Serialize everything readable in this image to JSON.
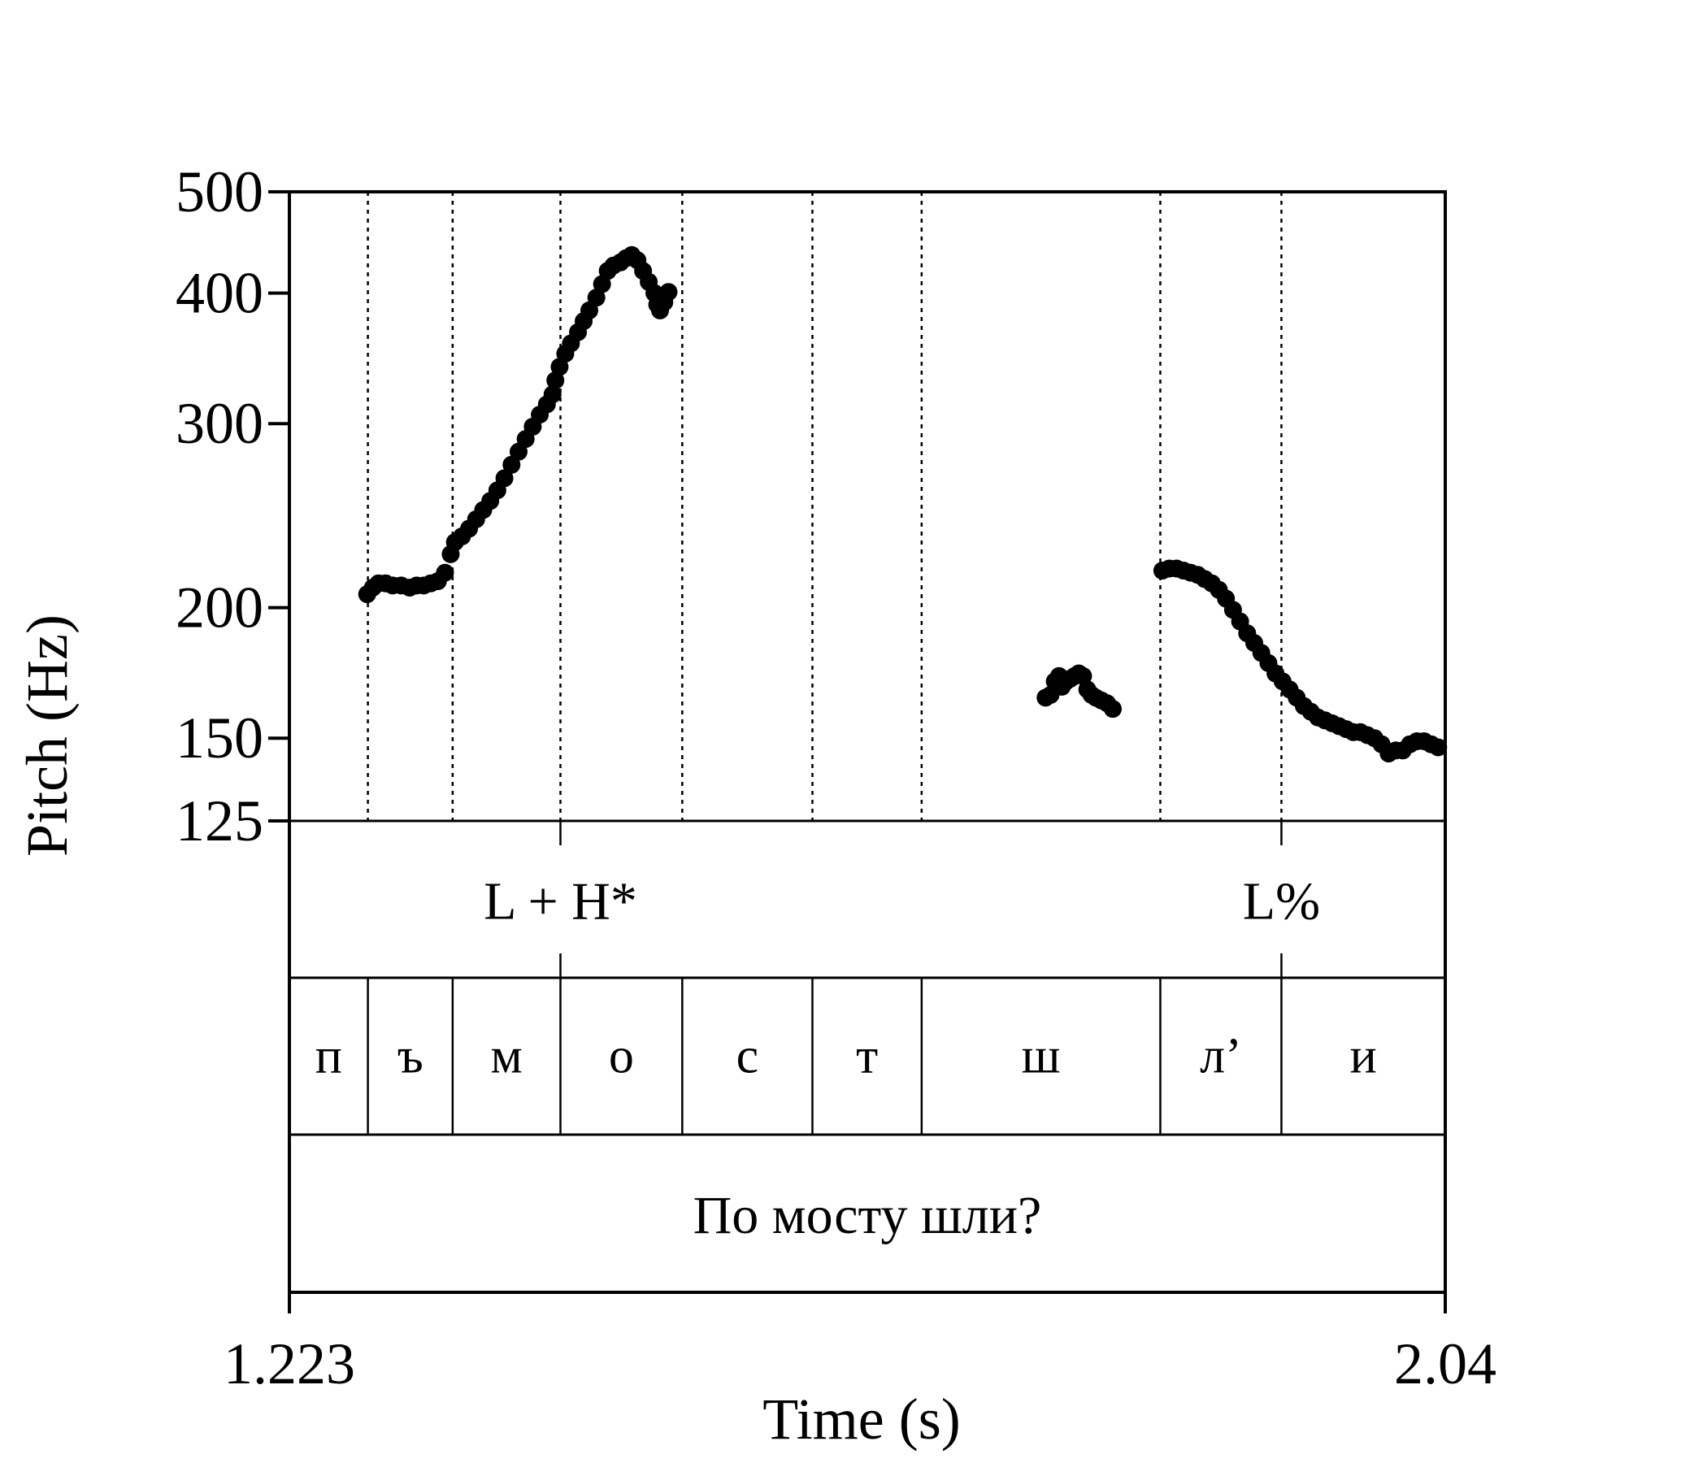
{
  "chart_data": {
    "type": "scatter",
    "title": "",
    "xlabel": "Time (s)",
    "ylabel": "Pitch (Hz)",
    "xlim": [
      1.223,
      2.04
    ],
    "ylim": [
      125,
      500
    ],
    "yscale": "log",
    "x_tick_labels": [
      "1.223",
      "2.04"
    ],
    "y_ticks": [
      {
        "value": 125,
        "label": "125"
      },
      {
        "value": 150,
        "label": "150"
      },
      {
        "value": 200,
        "label": "200"
      },
      {
        "value": 300,
        "label": "300"
      },
      {
        "value": 400,
        "label": "400"
      },
      {
        "value": 500,
        "label": "500"
      }
    ],
    "grid": false,
    "segment_boundaries": [
      1.2785,
      1.3384,
      1.4146,
      1.5007,
      1.5927,
      1.6699,
      1.8386,
      1.9242
    ],
    "tone_tier": [
      {
        "label": "L + H*",
        "time": 1.4146
      },
      {
        "label": "L%",
        "time": 1.9242
      }
    ],
    "segment_tier": [
      {
        "label": "п",
        "start": 1.223,
        "end": 1.2785
      },
      {
        "label": "ъ",
        "start": 1.2785,
        "end": 1.3384
      },
      {
        "label": "м",
        "start": 1.3384,
        "end": 1.4146
      },
      {
        "label": "о",
        "start": 1.4146,
        "end": 1.5007
      },
      {
        "label": "с",
        "start": 1.5007,
        "end": 1.5927
      },
      {
        "label": "т",
        "start": 1.5927,
        "end": 1.6699
      },
      {
        "label": "ш",
        "start": 1.6699,
        "end": 1.8386
      },
      {
        "label": "л’",
        "start": 1.8386,
        "end": 1.9242
      },
      {
        "label": "и",
        "start": 1.9242,
        "end": 2.04
      }
    ],
    "word_tier": [
      {
        "label": "По мосту шли?",
        "start": 1.223,
        "end": 2.04
      }
    ],
    "series": [
      {
        "points": [
          [
            1.278,
            206
          ],
          [
            1.282,
            209
          ],
          [
            1.286,
            211
          ],
          [
            1.291,
            211
          ],
          [
            1.296,
            210
          ],
          [
            1.302,
            210
          ],
          [
            1.308,
            209
          ],
          [
            1.313,
            210
          ],
          [
            1.318,
            210
          ],
          [
            1.323,
            211
          ],
          [
            1.328,
            212
          ],
          [
            1.333,
            216
          ],
          [
            1.337,
            225
          ],
          [
            1.34,
            231
          ],
          [
            1.345,
            234
          ],
          [
            1.35,
            238
          ],
          [
            1.355,
            243
          ],
          [
            1.36,
            248
          ],
          [
            1.365,
            253
          ],
          [
            1.37,
            259
          ],
          [
            1.375,
            266
          ],
          [
            1.38,
            274
          ],
          [
            1.385,
            282
          ],
          [
            1.39,
            290
          ],
          [
            1.395,
            298
          ],
          [
            1.4,
            306
          ],
          [
            1.405,
            313
          ],
          [
            1.409,
            320
          ],
          [
            1.411,
            330
          ],
          [
            1.414,
            340
          ],
          [
            1.418,
            350
          ],
          [
            1.422,
            358
          ],
          [
            1.427,
            367
          ],
          [
            1.431,
            376
          ],
          [
            1.435,
            385
          ],
          [
            1.44,
            396
          ],
          [
            1.444,
            408
          ],
          [
            1.448,
            420
          ],
          [
            1.452,
            425
          ],
          [
            1.457,
            428
          ],
          [
            1.461,
            432
          ],
          [
            1.465,
            435
          ],
          [
            1.469,
            430
          ],
          [
            1.473,
            420
          ],
          [
            1.477,
            410
          ],
          [
            1.481,
            400
          ],
          [
            1.483,
            390
          ],
          [
            1.485,
            385
          ],
          [
            1.488,
            392
          ],
          [
            1.491,
            401
          ]
        ]
      },
      {
        "points": [
          [
            1.7575,
            164
          ],
          [
            1.761,
            165
          ],
          [
            1.764,
            170
          ],
          [
            1.767,
            172
          ],
          [
            1.769,
            168
          ],
          [
            1.772,
            170
          ],
          [
            1.775,
            171
          ],
          [
            1.778,
            172
          ],
          [
            1.781,
            173
          ],
          [
            1.784,
            172
          ],
          [
            1.787,
            167
          ],
          [
            1.79,
            165
          ],
          [
            1.793,
            164
          ],
          [
            1.797,
            163
          ],
          [
            1.801,
            162
          ],
          [
            1.805,
            160
          ]
        ]
      },
      {
        "points": [
          [
            1.84,
            217
          ],
          [
            1.845,
            218
          ],
          [
            1.85,
            218
          ],
          [
            1.855,
            217
          ],
          [
            1.86,
            216
          ],
          [
            1.865,
            215
          ],
          [
            1.87,
            213
          ],
          [
            1.875,
            211
          ],
          [
            1.88,
            208
          ],
          [
            1.885,
            204
          ],
          [
            1.89,
            199
          ],
          [
            1.895,
            194
          ],
          [
            1.9,
            189
          ],
          [
            1.905,
            185
          ],
          [
            1.91,
            181
          ],
          [
            1.915,
            177
          ],
          [
            1.92,
            173
          ],
          [
            1.925,
            170
          ],
          [
            1.93,
            167
          ],
          [
            1.935,
            164
          ],
          [
            1.94,
            161
          ],
          [
            1.945,
            159
          ],
          [
            1.95,
            157
          ],
          [
            1.955,
            156
          ],
          [
            1.96,
            155
          ],
          [
            1.965,
            154
          ],
          [
            1.97,
            153
          ],
          [
            1.975,
            152
          ],
          [
            1.98,
            152
          ],
          [
            1.985,
            151
          ],
          [
            1.99,
            150
          ],
          [
            1.995,
            148
          ],
          [
            2.0,
            145
          ],
          [
            2.005,
            146
          ],
          [
            2.01,
            146
          ],
          [
            2.015,
            148
          ],
          [
            2.02,
            149
          ],
          [
            2.025,
            149
          ],
          [
            2.03,
            148
          ],
          [
            2.035,
            147
          ]
        ]
      }
    ]
  }
}
